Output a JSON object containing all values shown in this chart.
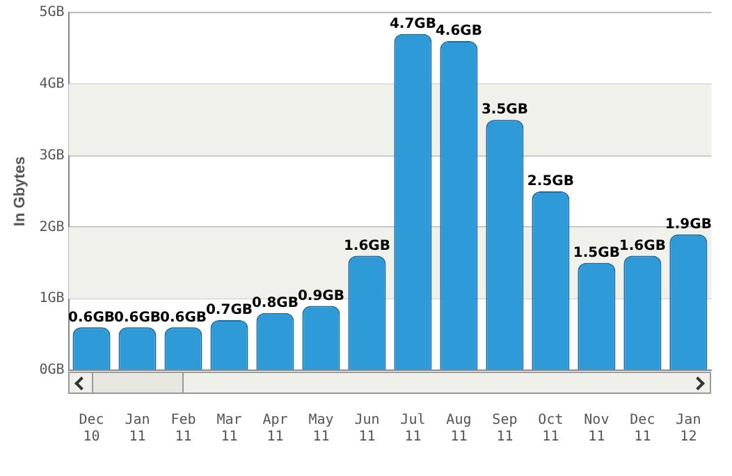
{
  "chart_data": {
    "type": "bar",
    "ylabel": "In Gbytes",
    "categories": [
      "Dec 10",
      "Jan 11",
      "Feb 11",
      "Mar 11",
      "Apr 11",
      "May 11",
      "Jun 11",
      "Jul 11",
      "Aug 11",
      "Sep 11",
      "Oct 11",
      "Nov 11",
      "Dec 11",
      "Jan 12"
    ],
    "values": [
      0.6,
      0.6,
      0.6,
      0.7,
      0.8,
      0.9,
      1.6,
      4.7,
      4.6,
      3.5,
      2.5,
      1.5,
      1.6,
      1.9
    ],
    "value_labels": [
      "0.6GB",
      "0.6GB",
      "0.6GB",
      "0.7GB",
      "0.8GB",
      "0.9GB",
      "1.6GB",
      "4.7GB",
      "4.6GB",
      "3.5GB",
      "2.5GB",
      "1.5GB",
      "1.6GB",
      "1.9GB"
    ],
    "color": "#2e9ad8",
    "ylim": [
      0,
      5
    ],
    "yticks": [
      {
        "value": 0,
        "label": "0GB"
      },
      {
        "value": 1,
        "label": "1GB"
      },
      {
        "value": 2,
        "label": "2GB"
      },
      {
        "value": 3,
        "label": "3GB"
      },
      {
        "value": 4,
        "label": "4GB"
      },
      {
        "value": 5,
        "label": "5GB"
      }
    ],
    "bands": [
      {
        "axis": "y",
        "from": 1,
        "to": 2,
        "color": "#f1f1eb"
      },
      {
        "axis": "y",
        "from": 3,
        "to": 4,
        "color": "#f1f1eb"
      }
    ],
    "grid": "y",
    "legend": false
  }
}
